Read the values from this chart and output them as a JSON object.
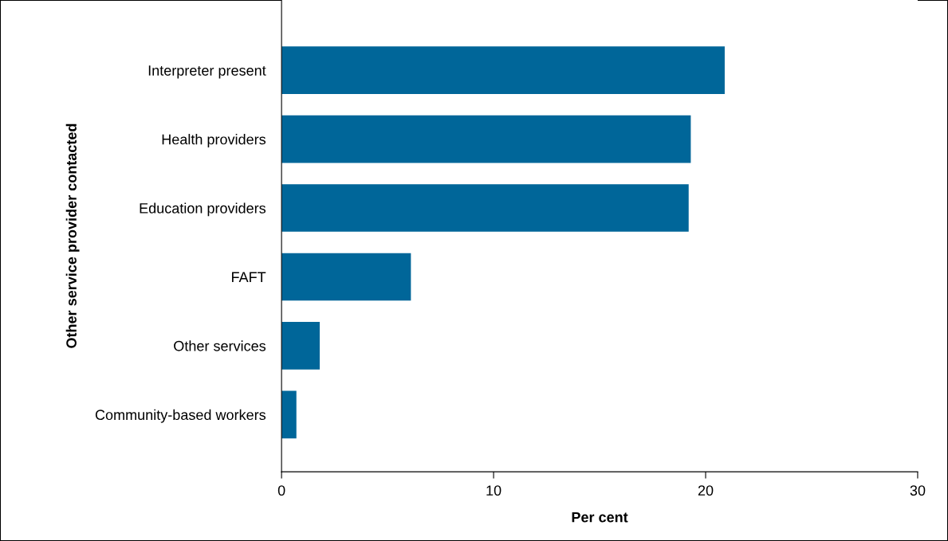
{
  "chart_data": {
    "type": "bar",
    "orientation": "horizontal",
    "xlabel": "Per cent",
    "ylabel": "Other service provider contacted",
    "categories": [
      "Interpreter present",
      "Health providers",
      "Education providers",
      "FAFT",
      "Other services",
      "Community-based workers"
    ],
    "values": [
      20.9,
      19.3,
      19.2,
      6.1,
      1.8,
      0.7
    ],
    "color": "#006699",
    "xlim": [
      0,
      30
    ],
    "xticks": [
      0,
      10,
      20,
      30
    ],
    "grid": false,
    "legend": false
  }
}
